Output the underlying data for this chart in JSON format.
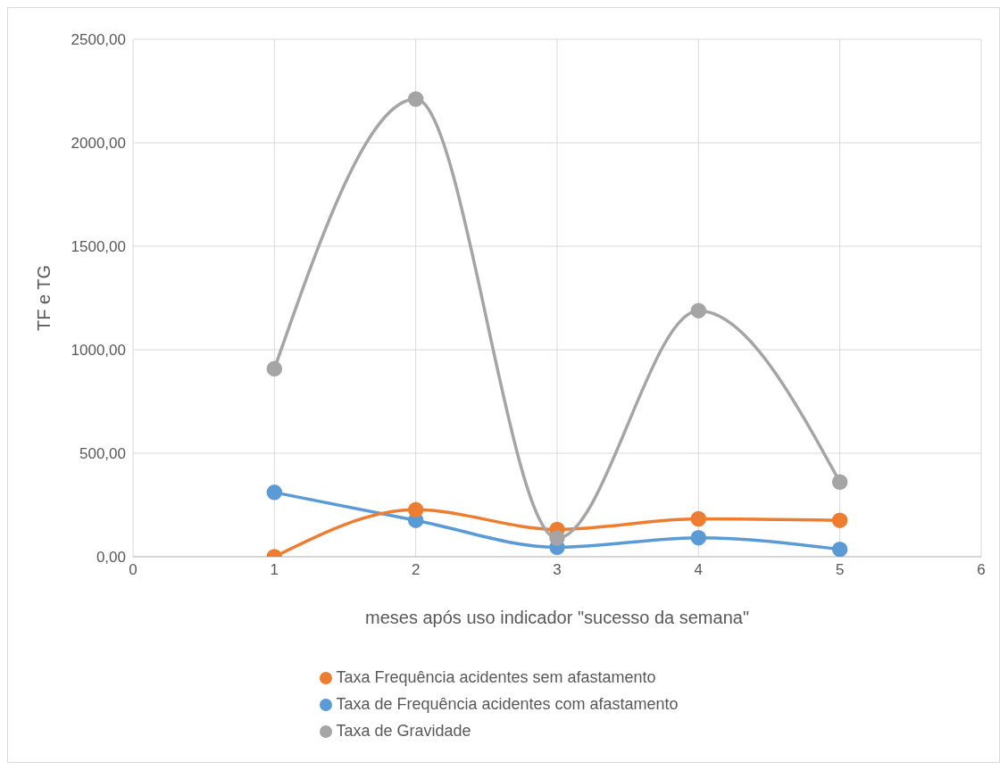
{
  "chart_data": {
    "type": "line",
    "xlabel": "meses após uso indicador \"sucesso da semana\"",
    "ylabel": "TF e TG",
    "x": [
      1,
      2,
      3,
      4,
      5
    ],
    "xlim": [
      0,
      6
    ],
    "xticks": [
      0,
      1,
      2,
      3,
      4,
      5,
      6
    ],
    "ylim": [
      0,
      2500
    ],
    "yticks": [
      {
        "value": 0,
        "label": "0,00"
      },
      {
        "value": 500,
        "label": "500,00"
      },
      {
        "value": 1000,
        "label": "1000,00"
      },
      {
        "value": 1500,
        "label": "1500,00"
      },
      {
        "value": 2000,
        "label": "2000,00"
      },
      {
        "value": 2500,
        "label": "2500,00"
      }
    ],
    "grid": true,
    "legend": "bottom",
    "marker": "circle",
    "line_style": "solid",
    "series": [
      {
        "name": "Taxa de Frequência acidentes com afastamento",
        "color": "#5b9bd5",
        "values": [
          311,
          176,
          46,
          92,
          36
        ]
      },
      {
        "name": "Taxa Frequência acidentes sem afastamento",
        "color": "#ed7d31",
        "values": [
          0,
          227,
          132,
          183,
          176
        ]
      },
      {
        "name": "Taxa de Gravidade",
        "color": "#a5a5a5",
        "values": [
          908,
          2211,
          90,
          1189,
          361
        ]
      }
    ]
  }
}
